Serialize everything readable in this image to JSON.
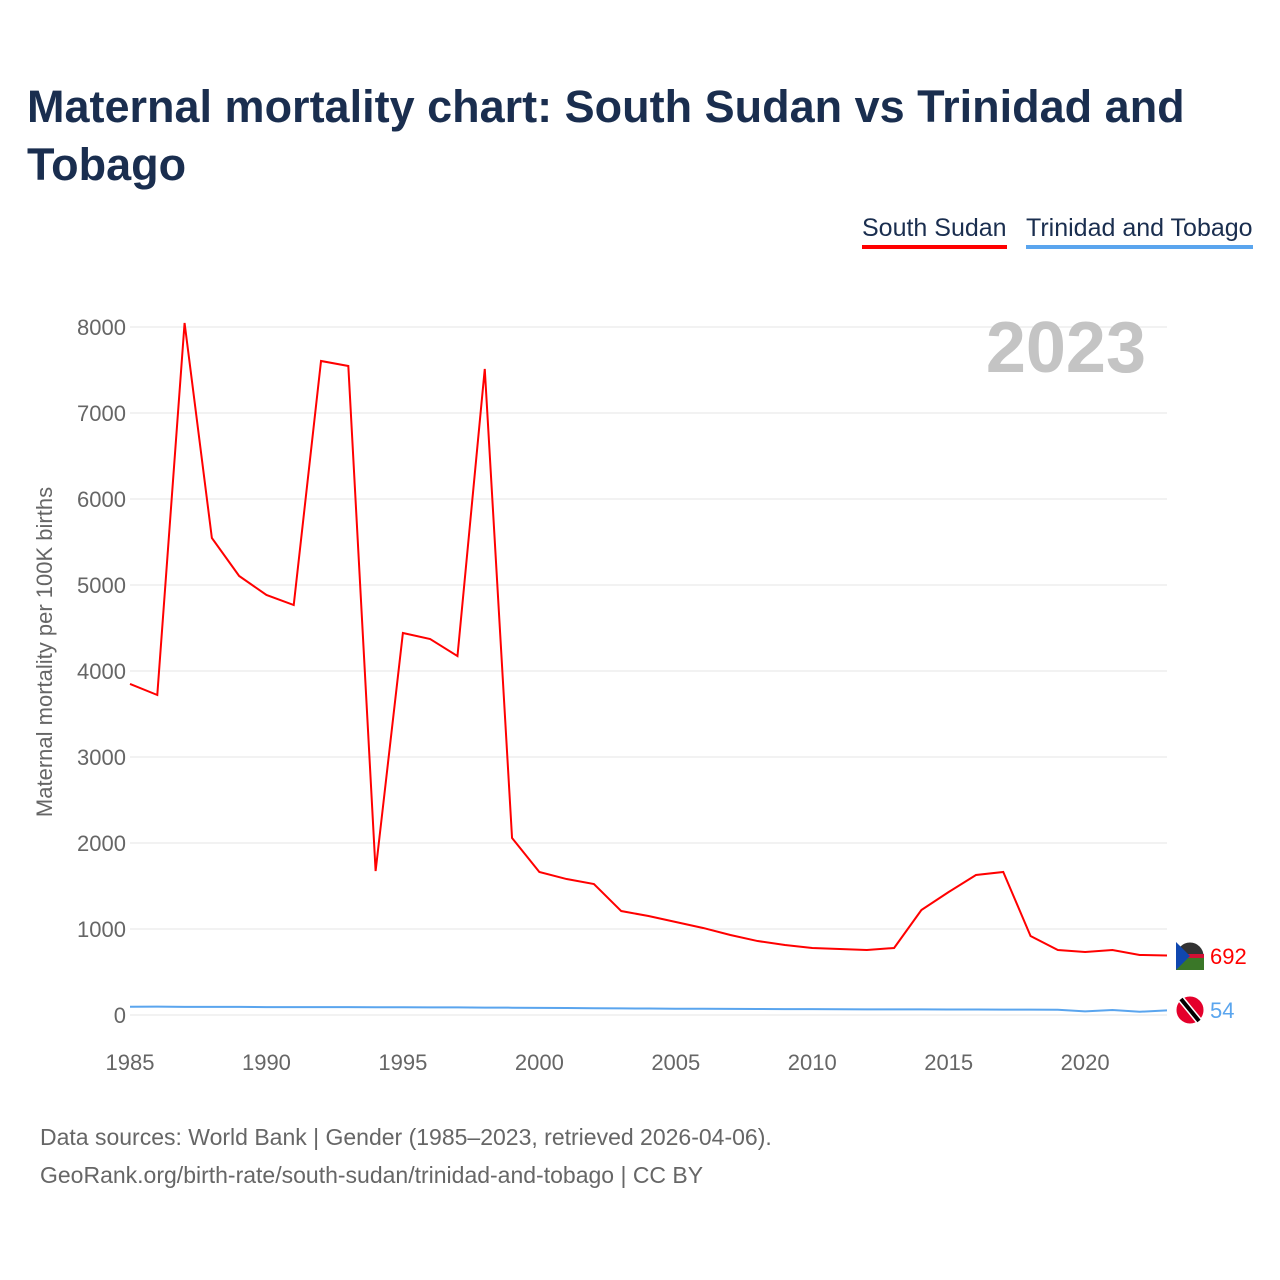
{
  "chart_data": {
    "type": "line",
    "title": "Maternal mortality chart: South Sudan vs Trinidad and Tobago",
    "xlabel": "",
    "ylabel": "Maternal mortality per 100K births",
    "xlim": [
      1985,
      2023
    ],
    "ylim": [
      0,
      8000
    ],
    "yticks": [
      0,
      1000,
      2000,
      3000,
      4000,
      5000,
      6000,
      7000,
      8000
    ],
    "xticks": [
      1985,
      1990,
      1995,
      2000,
      2005,
      2010,
      2015,
      2020
    ],
    "year_label": "2023",
    "legend_position": "top-right",
    "x": [
      1985,
      1986,
      1987,
      1988,
      1989,
      1990,
      1991,
      1992,
      1993,
      1994,
      1995,
      1996,
      1997,
      1998,
      1999,
      2000,
      2001,
      2002,
      2003,
      2004,
      2005,
      2006,
      2007,
      2008,
      2009,
      2010,
      2011,
      2012,
      2013,
      2014,
      2015,
      2016,
      2017,
      2018,
      2019,
      2020,
      2021,
      2022,
      2023
    ],
    "series": [
      {
        "name": "South Sudan",
        "color": "#ff0000",
        "end_label": "692",
        "values": [
          3849,
          3721,
          8047,
          5547,
          5105,
          4884,
          4767,
          7605,
          7547,
          1674,
          4442,
          4372,
          4174,
          7512,
          2058,
          1663,
          1581,
          1523,
          1209,
          1151,
          1081,
          1012,
          930,
          860,
          814,
          779,
          767,
          756,
          779,
          1221,
          1430,
          1628,
          1663,
          919,
          756,
          733,
          756,
          698,
          692
        ]
      },
      {
        "name": "Trinidad and Tobago",
        "color": "#5aa5ee",
        "end_label": "54",
        "values": [
          96,
          97,
          95,
          94,
          94,
          92,
          91,
          92,
          91,
          90,
          90,
          89,
          88,
          86,
          85,
          83,
          81,
          79,
          77,
          75,
          73,
          72,
          71,
          70,
          69,
          68,
          67,
          66,
          65,
          65,
          64,
          64,
          63,
          62,
          61,
          42,
          58,
          38,
          54
        ]
      }
    ]
  },
  "footer": {
    "line1": "Data sources: World Bank | Gender (1985–2023, retrieved 2026-04-06).",
    "line2": "GeoRank.org/birth-rate/south-sudan/trinidad-and-tobago | CC BY"
  }
}
